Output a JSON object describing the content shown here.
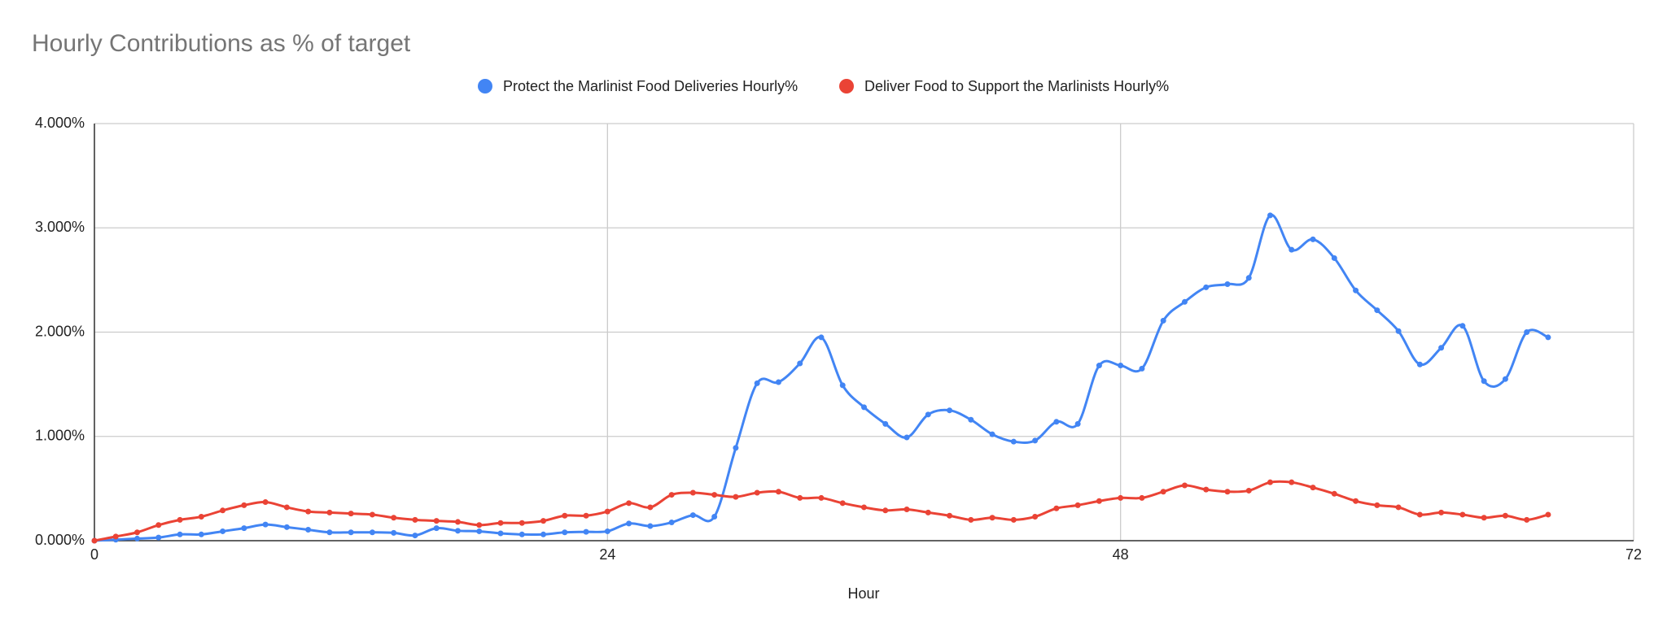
{
  "chart_data": {
    "type": "line",
    "title": "Hourly Contributions as % of target",
    "x_label": "Hour",
    "x": [
      0,
      1,
      2,
      3,
      4,
      5,
      6,
      7,
      8,
      9,
      10,
      11,
      12,
      13,
      14,
      15,
      16,
      17,
      18,
      19,
      20,
      21,
      22,
      23,
      24,
      25,
      26,
      27,
      28,
      29,
      30,
      31,
      32,
      33,
      34,
      35,
      36,
      37,
      38,
      39,
      40,
      41,
      42,
      43,
      44,
      45,
      46,
      47,
      48,
      49,
      50,
      51,
      52,
      53,
      54,
      55,
      56,
      57,
      58,
      59,
      60,
      61,
      62,
      63,
      64,
      65,
      66,
      67,
      68
    ],
    "series": [
      {
        "name": "Protect the Marlinist Food Deliveries Hourly%",
        "color": "#4285f4",
        "values": [
          0,
          0.01,
          0.02,
          0.03,
          0.06,
          0.06,
          0.09,
          0.12,
          0.155,
          0.13,
          0.105,
          0.08,
          0.08,
          0.08,
          0.075,
          0.05,
          0.12,
          0.095,
          0.09,
          0.07,
          0.06,
          0.06,
          0.08,
          0.085,
          0.09,
          0.165,
          0.14,
          0.175,
          0.245,
          0.23,
          0.89,
          1.51,
          1.52,
          1.7,
          1.95,
          1.49,
          1.28,
          1.12,
          0.99,
          1.21,
          1.25,
          1.16,
          1.02,
          0.95,
          0.96,
          1.14,
          1.12,
          1.68,
          1.68,
          1.65,
          2.11,
          2.29,
          2.43,
          2.46,
          2.52,
          3.12,
          2.79,
          2.89,
          2.71,
          2.4,
          2.21,
          2.01,
          1.69,
          1.85,
          2.06,
          1.53,
          1.55,
          2.0,
          1.95
        ]
      },
      {
        "name": "Deliver Food to Support the Marlinists Hourly%",
        "color": "#ea4335",
        "values": [
          0,
          0.04,
          0.08,
          0.15,
          0.2,
          0.23,
          0.29,
          0.34,
          0.37,
          0.32,
          0.28,
          0.27,
          0.26,
          0.25,
          0.22,
          0.2,
          0.19,
          0.18,
          0.15,
          0.17,
          0.17,
          0.19,
          0.24,
          0.24,
          0.28,
          0.36,
          0.32,
          0.44,
          0.46,
          0.44,
          0.42,
          0.46,
          0.47,
          0.41,
          0.41,
          0.36,
          0.32,
          0.29,
          0.3,
          0.27,
          0.24,
          0.2,
          0.22,
          0.2,
          0.23,
          0.31,
          0.34,
          0.38,
          0.41,
          0.41,
          0.47,
          0.53,
          0.49,
          0.47,
          0.48,
          0.56,
          0.56,
          0.51,
          0.45,
          0.38,
          0.34,
          0.32,
          0.25,
          0.27,
          0.25,
          0.22,
          0.24,
          0.2,
          0.25
        ]
      }
    ],
    "xlim": [
      0,
      72
    ],
    "xticks": [
      0,
      24,
      48,
      72
    ],
    "ylim": [
      0,
      4
    ],
    "yticks": [
      {
        "value": 0,
        "label": "0.000%"
      },
      {
        "value": 1,
        "label": "1.000%"
      },
      {
        "value": 2,
        "label": "2.000%"
      },
      {
        "value": 3,
        "label": "3.000%"
      },
      {
        "value": 4,
        "label": "4.000%"
      }
    ],
    "grid": true,
    "legend": "top"
  }
}
